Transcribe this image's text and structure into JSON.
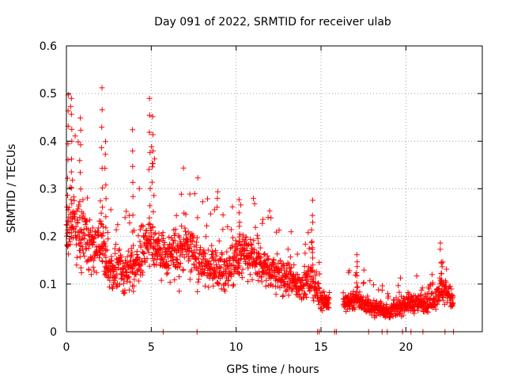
{
  "chart_data": {
    "type": "scatter",
    "title": "Day 091 of 2022, SRMTID for receiver ulab",
    "xlabel": "GPS time / hours",
    "ylabel": "SRMTID / TECUs",
    "xlim": [
      0,
      24.5
    ],
    "ylim": [
      0,
      0.6
    ],
    "xticks": [
      0,
      5,
      10,
      15,
      20
    ],
    "yticks": [
      0,
      0.1,
      0.2,
      0.3,
      0.4,
      0.5,
      0.6
    ],
    "xtick_labels": [
      "0",
      "5",
      "10",
      "15",
      "20"
    ],
    "ytick_labels": [
      "0",
      "0.1",
      "0.2",
      "0.3",
      "0.4",
      "0.5",
      "0.6"
    ],
    "grid": true,
    "marker": "+",
    "color": "#ff0000",
    "trend": [
      {
        "x": 0.0,
        "y": 0.2
      },
      {
        "x": 0.3,
        "y": 0.24
      },
      {
        "x": 0.6,
        "y": 0.22
      },
      {
        "x": 1.0,
        "y": 0.2
      },
      {
        "x": 1.5,
        "y": 0.17
      },
      {
        "x": 2.0,
        "y": 0.19
      },
      {
        "x": 2.5,
        "y": 0.13
      },
      {
        "x": 3.0,
        "y": 0.13
      },
      {
        "x": 3.5,
        "y": 0.12
      },
      {
        "x": 4.0,
        "y": 0.14
      },
      {
        "x": 4.5,
        "y": 0.17
      },
      {
        "x": 5.0,
        "y": 0.19
      },
      {
        "x": 5.5,
        "y": 0.17
      },
      {
        "x": 6.0,
        "y": 0.15
      },
      {
        "x": 6.5,
        "y": 0.17
      },
      {
        "x": 7.0,
        "y": 0.18
      },
      {
        "x": 7.5,
        "y": 0.17
      },
      {
        "x": 8.0,
        "y": 0.14
      },
      {
        "x": 8.5,
        "y": 0.14
      },
      {
        "x": 9.0,
        "y": 0.13
      },
      {
        "x": 9.5,
        "y": 0.13
      },
      {
        "x": 10.0,
        "y": 0.15
      },
      {
        "x": 10.5,
        "y": 0.16
      },
      {
        "x": 11.0,
        "y": 0.15
      },
      {
        "x": 11.5,
        "y": 0.14
      },
      {
        "x": 12.0,
        "y": 0.13
      },
      {
        "x": 12.5,
        "y": 0.12
      },
      {
        "x": 13.0,
        "y": 0.11
      },
      {
        "x": 13.5,
        "y": 0.1
      },
      {
        "x": 14.0,
        "y": 0.1
      },
      {
        "x": 14.5,
        "y": 0.11
      },
      {
        "x": 15.0,
        "y": 0.07
      },
      {
        "x": 15.5,
        "y": 0.06
      },
      {
        "x": 16.0,
        "y": 0.06
      },
      {
        "x": 16.5,
        "y": 0.06
      },
      {
        "x": 17.0,
        "y": 0.07
      },
      {
        "x": 17.5,
        "y": 0.06
      },
      {
        "x": 18.0,
        "y": 0.05
      },
      {
        "x": 18.5,
        "y": 0.05
      },
      {
        "x": 19.0,
        "y": 0.04
      },
      {
        "x": 19.5,
        "y": 0.05
      },
      {
        "x": 20.0,
        "y": 0.06
      },
      {
        "x": 20.5,
        "y": 0.06
      },
      {
        "x": 21.0,
        "y": 0.06
      },
      {
        "x": 21.5,
        "y": 0.06
      },
      {
        "x": 22.0,
        "y": 0.09
      },
      {
        "x": 22.5,
        "y": 0.08
      },
      {
        "x": 22.8,
        "y": 0.06
      }
    ],
    "peaks": [
      {
        "x": 0.1,
        "y": 0.5
      },
      {
        "x": 0.3,
        "y": 0.49
      },
      {
        "x": 0.8,
        "y": 0.45
      },
      {
        "x": 2.1,
        "y": 0.51
      },
      {
        "x": 2.3,
        "y": 0.4
      },
      {
        "x": 3.9,
        "y": 0.42
      },
      {
        "x": 4.9,
        "y": 0.49
      },
      {
        "x": 5.1,
        "y": 0.45
      },
      {
        "x": 10.2,
        "y": 0.28
      },
      {
        "x": 14.5,
        "y": 0.27
      },
      {
        "x": 17.1,
        "y": 0.16
      },
      {
        "x": 22.1,
        "y": 0.15
      }
    ],
    "zero_points": [
      5.7,
      7.7,
      14.8,
      14.9,
      15.8,
      15.9,
      17.8,
      18.6,
      18.9,
      19.8,
      20.3,
      21.0,
      22.3,
      22.8
    ],
    "gap_hours": [
      [
        15.5,
        16.3
      ]
    ]
  }
}
